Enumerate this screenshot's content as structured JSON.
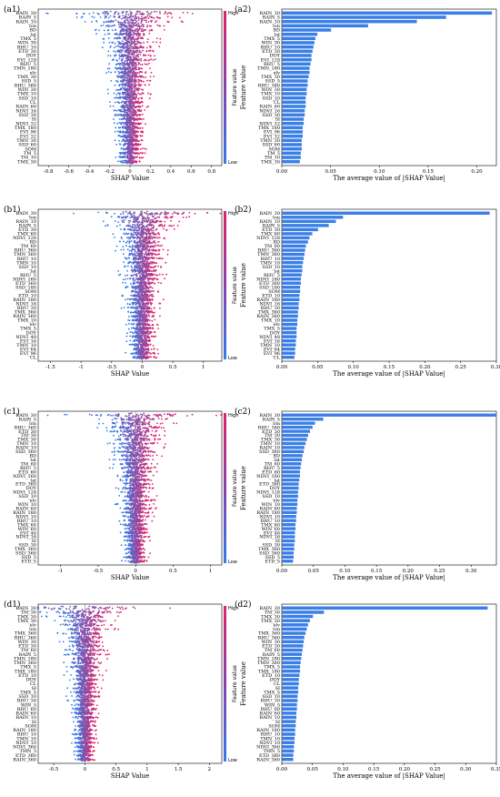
{
  "colors": {
    "bar": "#3a7fe6",
    "low": "#2f7de8",
    "high": "#e0226b",
    "zero_line": "#888888"
  },
  "colorbar": {
    "high": "High",
    "low": "Low",
    "title": "Feature value"
  },
  "chart_data": [
    {
      "id": "a1",
      "panel": "(a1)",
      "type": "scatter",
      "xlabel": "SHAP Value",
      "xticks": [
        -0.8,
        -0.6,
        -0.4,
        -0.2,
        0.0,
        0.2,
        0.4,
        0.6,
        0.8
      ],
      "xlim": [
        -0.9,
        0.9
      ],
      "features": [
        "RAIN_30",
        "RAIN_5",
        "RAIN_10",
        "lon",
        "BD",
        "lat",
        "TMX_5",
        "WIN_30",
        "RHU_10",
        "ETD_30",
        "DOY",
        "EVI_128",
        "RHU_5",
        "TMN_180",
        "elv",
        "TMX_30",
        "SSD_5",
        "RHU_360",
        "WIN_30",
        "TMX_10",
        "SSD_10",
        "CL",
        "RAIN_60",
        "NDVI_16",
        "SSD_30",
        "SI",
        "NDVI_32",
        "TMX_180",
        "EVI_96",
        "EVI_32",
        "TMN_30",
        "SSD_60",
        "SOM",
        "TM_5",
        "TM_10",
        "TMX_30"
      ],
      "spread": [
        0.85,
        0.6,
        0.55,
        0.4,
        0.35,
        0.35,
        0.3,
        0.3,
        0.3,
        0.28,
        0.28,
        0.28,
        0.25,
        0.25,
        0.25,
        0.25,
        0.22,
        0.22,
        0.22,
        0.22,
        0.2,
        0.2,
        0.2,
        0.2,
        0.2,
        0.18,
        0.18,
        0.18,
        0.18,
        0.18,
        0.16,
        0.16,
        0.16,
        0.15,
        0.15,
        0.15
      ]
    },
    {
      "id": "a2",
      "panel": "(a2)",
      "type": "bar",
      "xlabel": "The average value of |SHAP Value|",
      "ylabel": "Feature value",
      "xticks": [
        0.0,
        0.05,
        0.1,
        0.15,
        0.2
      ],
      "xtick_labels": [
        "0.00",
        "0.05",
        "0.10",
        "0.15",
        "0.20"
      ],
      "xlim": [
        0,
        0.22
      ],
      "categories": [
        "RAIN_30",
        "RAIN_5",
        "RAIN_10",
        "lon",
        "BD",
        "lat",
        "TMX_5",
        "WIN_30",
        "RHU_10",
        "ETD_30",
        "DOY",
        "EVI_128",
        "RHU_5",
        "TMN_180",
        "elv",
        "TMX_30",
        "SSD_5",
        "RHU_360",
        "WIN_30",
        "TMX_10",
        "SSD_10",
        "CL",
        "RAIN_60",
        "NDVI_16",
        "SSD_30",
        "SI",
        "NDVI_32",
        "TMX_180",
        "EVI_96",
        "EVI_32",
        "TMN_30",
        "SSD_60",
        "SOM",
        "TM_5",
        "TM_10",
        "TMX_30"
      ],
      "values": [
        0.215,
        0.168,
        0.138,
        0.088,
        0.05,
        0.036,
        0.034,
        0.033,
        0.032,
        0.031,
        0.03,
        0.03,
        0.029,
        0.028,
        0.028,
        0.027,
        0.026,
        0.026,
        0.025,
        0.025,
        0.024,
        0.024,
        0.024,
        0.023,
        0.023,
        0.022,
        0.022,
        0.021,
        0.021,
        0.021,
        0.02,
        0.02,
        0.02,
        0.019,
        0.019,
        0.018
      ]
    },
    {
      "id": "b1",
      "panel": "(b1)",
      "type": "scatter",
      "xlabel": "SHAP Value",
      "xticks": [
        -1.5,
        -1.0,
        -0.5,
        0.0,
        0.5,
        1.0
      ],
      "xlim": [
        -1.7,
        1.3
      ],
      "features": [
        "RAIN_30",
        "lon",
        "RAIN_10",
        "RAIN_5",
        "ETD_30",
        "TMX_60",
        "NDVI_128",
        "BD",
        "TM_60",
        "RHU_360",
        "TMN_360",
        "RHU_10",
        "TMN_10",
        "SSD_10",
        "lat",
        "RHU_5",
        "NDVI_160",
        "ETD_360",
        "SSD_180",
        "SOM",
        "ETD_10",
        "RAIN_180",
        "NDVI_16",
        "RHU_30",
        "TMX_360",
        "RAIN_360",
        "TMX_10",
        "elv",
        "TMX_5",
        "DOY",
        "NDVI_48",
        "EVI_16",
        "TMN_10",
        "EVI_64",
        "EVI_96",
        "CL"
      ],
      "spread": [
        1.5,
        0.9,
        0.8,
        0.7,
        0.6,
        0.5,
        0.5,
        0.5,
        0.45,
        0.45,
        0.45,
        0.4,
        0.4,
        0.4,
        0.4,
        0.4,
        0.4,
        0.35,
        0.35,
        0.35,
        0.35,
        0.35,
        0.35,
        0.35,
        0.3,
        0.3,
        0.3,
        0.3,
        0.3,
        0.3,
        0.3,
        0.28,
        0.28,
        0.28,
        0.28,
        0.25
      ]
    },
    {
      "id": "b2",
      "panel": "(b2)",
      "type": "bar",
      "xlabel": "The average value of |SHAP Value|",
      "ylabel": "Feature value",
      "xticks": [
        0.0,
        0.05,
        0.1,
        0.15,
        0.2,
        0.25,
        0.3
      ],
      "xtick_labels": [
        "0.00",
        "0.05",
        "0.10",
        "0.15",
        "0.20",
        "0.25",
        "0.30"
      ],
      "xlim": [
        0,
        0.3
      ],
      "categories": [
        "RAIN_30",
        "lon",
        "RAIN_10",
        "RAIN_5",
        "ETD_30",
        "TMX_60",
        "NDVI_128",
        "BD",
        "TM_60",
        "RHU_360",
        "TMN_360",
        "RHU_10",
        "TMN_10",
        "SSD_10",
        "lat",
        "RHU_5",
        "NDVI_160",
        "ETD_360",
        "SSD_180",
        "SOM",
        "ETD_10",
        "RAIN_180",
        "NDVI_16",
        "RHU_30",
        "TMX_360",
        "RAIN_360",
        "TMX_10",
        "elv",
        "TMX_5",
        "DOY",
        "NDVI_48",
        "EVI_16",
        "TMN_10",
        "EVI_64",
        "EVI_96",
        "CL"
      ],
      "values": [
        0.29,
        0.085,
        0.075,
        0.065,
        0.05,
        0.042,
        0.038,
        0.036,
        0.033,
        0.032,
        0.031,
        0.03,
        0.029,
        0.028,
        0.028,
        0.027,
        0.026,
        0.026,
        0.025,
        0.025,
        0.024,
        0.024,
        0.023,
        0.023,
        0.022,
        0.022,
        0.021,
        0.021,
        0.02,
        0.02,
        0.02,
        0.019,
        0.019,
        0.018,
        0.018,
        0.017
      ]
    },
    {
      "id": "c1",
      "panel": "(c1)",
      "type": "scatter",
      "xlabel": "SHAP Value",
      "xticks": [
        -1.0,
        -0.5,
        0.0,
        0.5,
        1.0
      ],
      "xlim": [
        -1.3,
        1.15
      ],
      "features": [
        "RAIN_30",
        "RAIN_5",
        "lon",
        "RHU_360",
        "ETD_30",
        "TM_30",
        "TMX_30",
        "TMN_10",
        "RAIN_10",
        "SSD_360",
        "BD",
        "lat",
        "TM_60",
        "RHU_5",
        "ETD_60",
        "NDVI_160",
        "lat",
        "ETD_360",
        "DOY",
        "NDVI_128",
        "SSD_10",
        "elv",
        "WIN_10",
        "RAIN_60",
        "RAIN_180",
        "NDVI_10",
        "RHU_10",
        "TMX_60",
        "WIN_60",
        "EVI_48",
        "NDVI_16",
        "SI",
        "SSD_30",
        "TMX_360",
        "SSD_360",
        "SSD_5",
        "ETD_5"
      ],
      "spread": [
        1.2,
        0.7,
        0.6,
        0.55,
        0.5,
        0.45,
        0.45,
        0.4,
        0.4,
        0.4,
        0.35,
        0.35,
        0.35,
        0.35,
        0.3,
        0.3,
        0.3,
        0.3,
        0.3,
        0.3,
        0.28,
        0.28,
        0.28,
        0.28,
        0.25,
        0.25,
        0.25,
        0.25,
        0.25,
        0.22,
        0.22,
        0.22,
        0.2,
        0.2,
        0.2,
        0.2,
        0.2
      ]
    },
    {
      "id": "c2",
      "panel": "(c2)",
      "type": "bar",
      "xlabel": "The average value of |SHAP Value|",
      "ylabel": "Feature value",
      "xticks": [
        0.0,
        0.05,
        0.1,
        0.15,
        0.2,
        0.25,
        0.3
      ],
      "xtick_labels": [
        "0.00",
        "0.05",
        "0.10",
        "0.15",
        "0.20",
        "0.25",
        "0.30"
      ],
      "xlim": [
        0,
        0.34
      ],
      "categories": [
        "RAIN_30",
        "RAIN_5",
        "lon",
        "RHU_360",
        "ETD_30",
        "TM_30",
        "TMX_30",
        "TMN_10",
        "RAIN_10",
        "SSD_360",
        "BD",
        "lat",
        "TM_60",
        "RHU_5",
        "ETD_60",
        "NDVI_160",
        "lat",
        "ETD_360",
        "DOY",
        "NDVI_128",
        "SSD_10",
        "elv",
        "WIN_10",
        "RAIN_60",
        "RAIN_180",
        "NDVI_10",
        "RHU_10",
        "TMX_60",
        "WIN_60",
        "EVI_48",
        "NDVI_16",
        "SI",
        "SSD_30",
        "TMX_360",
        "SSD_360",
        "SSD_5",
        "ETD_5"
      ],
      "values": [
        0.34,
        0.065,
        0.052,
        0.048,
        0.044,
        0.041,
        0.039,
        0.037,
        0.035,
        0.034,
        0.032,
        0.031,
        0.03,
        0.029,
        0.028,
        0.028,
        0.027,
        0.026,
        0.026,
        0.025,
        0.025,
        0.024,
        0.024,
        0.023,
        0.023,
        0.022,
        0.022,
        0.021,
        0.021,
        0.02,
        0.02,
        0.02,
        0.019,
        0.019,
        0.018,
        0.018,
        0.017
      ]
    },
    {
      "id": "d1",
      "panel": "(d1)",
      "type": "scatter",
      "xlabel": "SHAP Value",
      "xticks": [
        -0.5,
        0.0,
        0.5,
        1.0,
        1.5,
        2.0
      ],
      "xlim": [
        -0.75,
        2.2
      ],
      "features": [
        "RAIN_30",
        "TM_30",
        "TMX_30",
        "TMX_30",
        "elv",
        "lon",
        "TMX_360",
        "RHU_360",
        "WIN_30",
        "ETD_30",
        "TM_60",
        "RAIN_5",
        "TMN_180",
        "TMN_360",
        "TMX_5",
        "TMX_180",
        "ETD_10",
        "DOY",
        "CL",
        "SI",
        "TMX_5",
        "SSD_10",
        "RHU_30",
        "WIN_5",
        "RHU_60",
        "RAIN_60",
        "RAIN_10",
        "SI",
        "SOM",
        "RAIN_180",
        "RHU_10",
        "TMN_10",
        "NDVI_10",
        "NDVI_360",
        "TMN_5",
        "ETD_360",
        "RAIN_360"
      ],
      "spread": [
        2.0,
        0.8,
        0.7,
        0.6,
        0.55,
        0.5,
        0.5,
        0.45,
        0.45,
        0.4,
        0.4,
        0.4,
        0.4,
        0.35,
        0.35,
        0.35,
        0.35,
        0.3,
        0.3,
        0.3,
        0.3,
        0.3,
        0.28,
        0.28,
        0.28,
        0.28,
        0.25,
        0.25,
        0.25,
        0.25,
        0.22,
        0.22,
        0.22,
        0.22,
        0.2,
        0.2,
        0.2
      ]
    },
    {
      "id": "d2",
      "panel": "(d2)",
      "type": "bar",
      "xlabel": "The average value of |SHAP Value|",
      "ylabel": "Feature value",
      "xticks": [
        0.0,
        0.05,
        0.1,
        0.15,
        0.2,
        0.25,
        0.3,
        0.35
      ],
      "xtick_labels": [
        "0.00",
        "0.05",
        "0.10",
        "0.15",
        "0.20",
        "0.25",
        "0.30",
        "0.35"
      ],
      "xlim": [
        0,
        0.35
      ],
      "categories": [
        "RAIN_30",
        "TM_30",
        "TMX_30",
        "TMX_30",
        "elv",
        "lon",
        "TMX_360",
        "RHU_360",
        "WIN_30",
        "ETD_30",
        "TM_60",
        "RAIN_5",
        "TMN_180",
        "TMN_360",
        "TMX_5",
        "TMX_180",
        "ETD_10",
        "DOY",
        "CL",
        "SI",
        "TMX_5",
        "SSD_10",
        "RHU_30",
        "WIN_5",
        "RHU_60",
        "RAIN_60",
        "RAIN_10",
        "SI",
        "SOM",
        "RAIN_180",
        "RHU_10",
        "TMN_10",
        "NDVI_10",
        "NDVI_360",
        "TMN_5",
        "ETD_360",
        "RAIN_360"
      ],
      "values": [
        0.335,
        0.068,
        0.05,
        0.045,
        0.042,
        0.04,
        0.038,
        0.036,
        0.035,
        0.034,
        0.033,
        0.032,
        0.031,
        0.03,
        0.029,
        0.029,
        0.028,
        0.027,
        0.027,
        0.026,
        0.026,
        0.025,
        0.025,
        0.024,
        0.024,
        0.023,
        0.023,
        0.022,
        0.022,
        0.021,
        0.021,
        0.02,
        0.02,
        0.019,
        0.019,
        0.018,
        0.018
      ]
    }
  ]
}
